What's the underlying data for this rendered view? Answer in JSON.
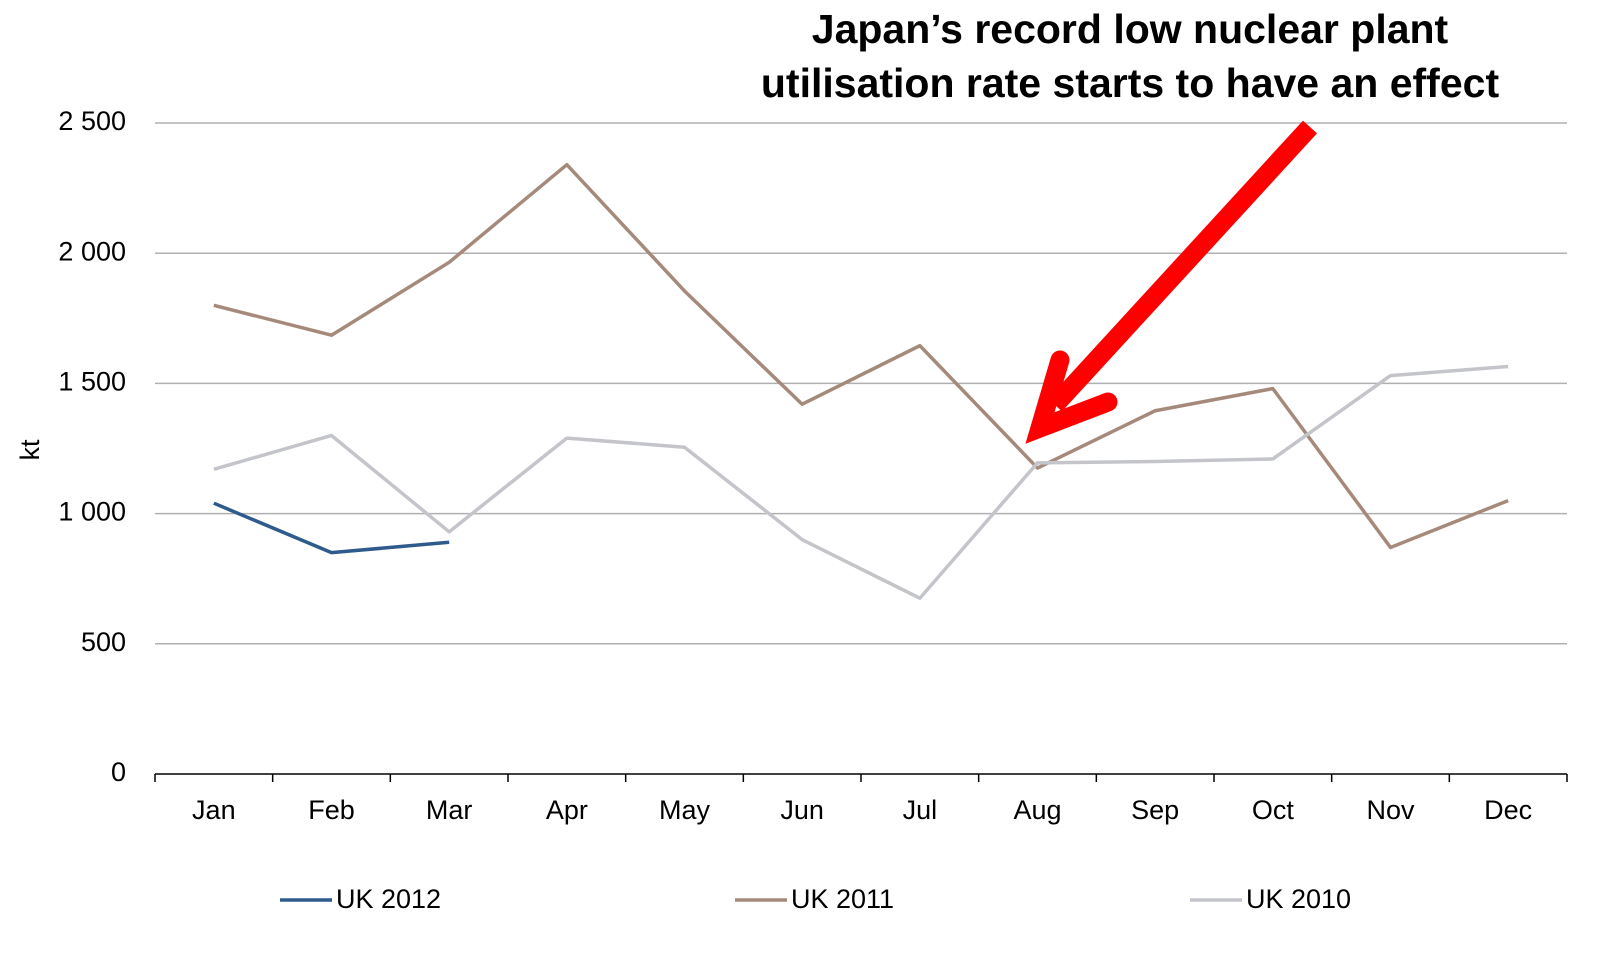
{
  "chart_data": {
    "type": "line",
    "annotation": [
      "Japan’s record low nuclear plant",
      "utilisation rate starts to have an effect"
    ],
    "annotation_color": "#ff0000",
    "y_label": "kt",
    "categories": [
      "Jan",
      "Feb",
      "Mar",
      "Apr",
      "May",
      "Jun",
      "Jul",
      "Aug",
      "Sep",
      "Oct",
      "Nov",
      "Dec"
    ],
    "series": [
      {
        "name": "UK 2012",
        "color": "#2e5a8c",
        "values": [
          1040,
          850,
          890,
          null,
          null,
          null,
          null,
          null,
          null,
          null,
          null,
          null
        ]
      },
      {
        "name": "UK 2011",
        "color": "#a58a7b",
        "values": [
          1800,
          1685,
          1965,
          2340,
          1855,
          1420,
          1645,
          1175,
          1395,
          1480,
          870,
          1050
        ]
      },
      {
        "name": "UK 2010",
        "color": "#c4c5cb",
        "values": [
          1170,
          1300,
          930,
          1290,
          1255,
          900,
          675,
          1195,
          1200,
          1210,
          1530,
          1565
        ]
      }
    ],
    "ylim": [
      0,
      2500
    ],
    "yticks": [
      0,
      500,
      {
        "value": 1000,
        "label": "1 000"
      },
      {
        "value": 1500,
        "label": "1 500"
      },
      {
        "value": 2000,
        "label": "2 000"
      },
      {
        "value": 2500,
        "label": "2 500"
      }
    ],
    "grid": true
  }
}
